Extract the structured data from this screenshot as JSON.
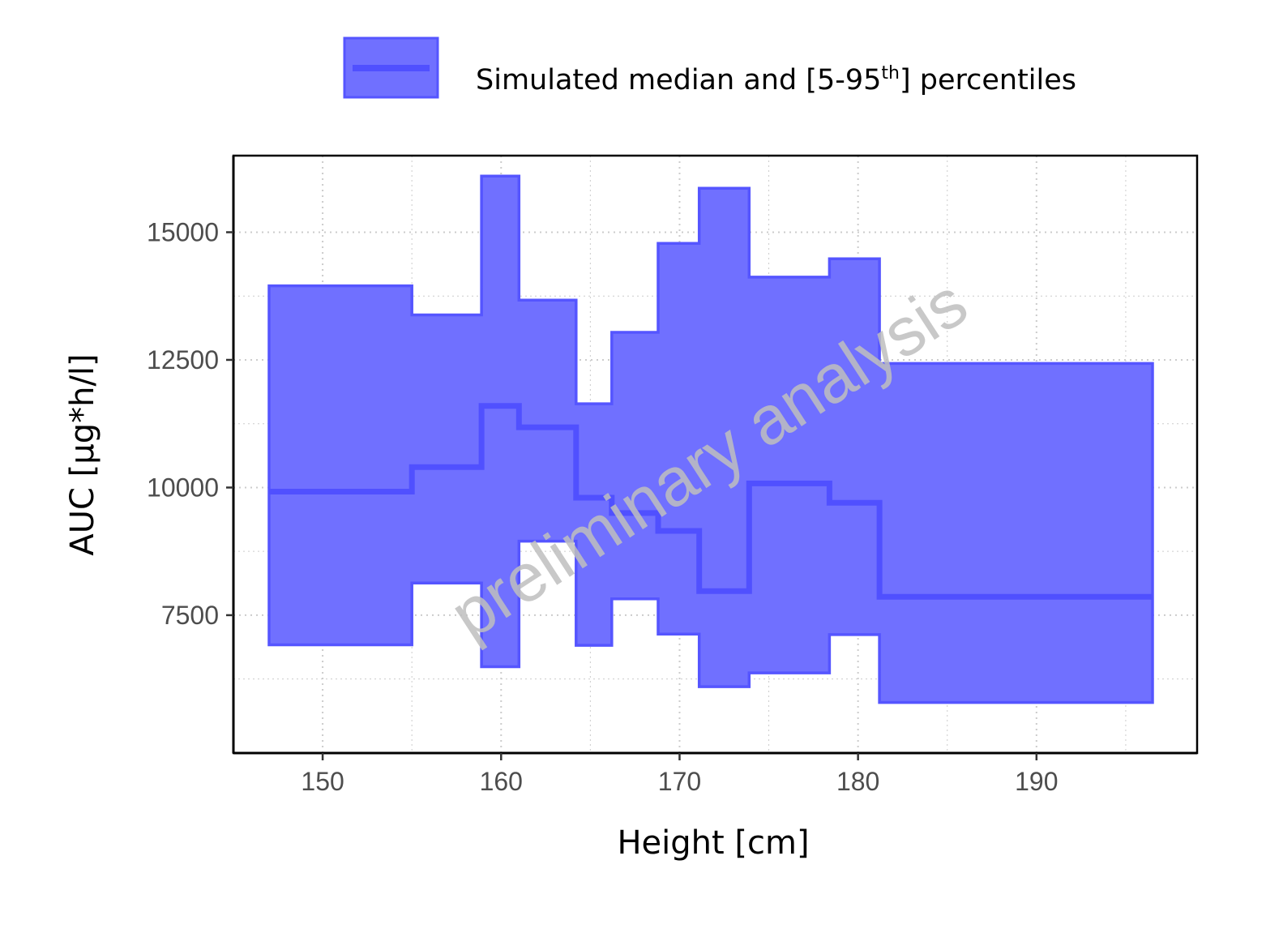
{
  "chart_data": {
    "type": "area",
    "xlabel": "Height [cm]",
    "ylabel": "AUC [µg*h/l]",
    "xlim": [
      145,
      199
    ],
    "ylim": [
      4800,
      16500
    ],
    "xticks": [
      150,
      160,
      170,
      180,
      190
    ],
    "yticks": [
      7500,
      10000,
      12500,
      15000
    ],
    "x_tick_labels": [
      "150",
      "160",
      "170",
      "180",
      "190"
    ],
    "y_tick_labels": [
      "7500",
      "10000",
      "12500",
      "15000"
    ],
    "grid": true,
    "legend": {
      "position": "top",
      "label_main": "Simulated median and [5-95",
      "label_sup": "th",
      "label_end": "] percentiles"
    },
    "watermark": "preliminary analysis",
    "colors": {
      "band_fill": "#7070ff",
      "band_edge": "#5555ff",
      "median_line": "#5050ff",
      "grid": "#cccccc"
    },
    "series": [
      {
        "name": "Simulated median and [5-95th] percentiles",
        "bins": [
          {
            "x_start": 147.0,
            "x_end": 155.0,
            "median": 9920,
            "p5": 6920,
            "p95": 13950
          },
          {
            "x_start": 155.0,
            "x_end": 158.9,
            "median": 10400,
            "p5": 8130,
            "p95": 13380
          },
          {
            "x_start": 158.9,
            "x_end": 161.0,
            "median": 11600,
            "p5": 6490,
            "p95": 16100
          },
          {
            "x_start": 161.0,
            "x_end": 164.2,
            "median": 11180,
            "p5": 8950,
            "p95": 13670
          },
          {
            "x_start": 164.2,
            "x_end": 166.2,
            "median": 9800,
            "p5": 6910,
            "p95": 11640
          },
          {
            "x_start": 166.2,
            "x_end": 168.8,
            "median": 9500,
            "p5": 7820,
            "p95": 13040
          },
          {
            "x_start": 168.8,
            "x_end": 171.1,
            "median": 9150,
            "p5": 7130,
            "p95": 14780
          },
          {
            "x_start": 171.1,
            "x_end": 173.9,
            "median": 7970,
            "p5": 6100,
            "p95": 15860
          },
          {
            "x_start": 173.9,
            "x_end": 178.4,
            "median": 10080,
            "p5": 6370,
            "p95": 14120
          },
          {
            "x_start": 178.4,
            "x_end": 181.2,
            "median": 9700,
            "p5": 7120,
            "p95": 14480
          },
          {
            "x_start": 181.2,
            "x_end": 196.5,
            "median": 7860,
            "p5": 5790,
            "p95": 12430
          }
        ]
      }
    ]
  }
}
